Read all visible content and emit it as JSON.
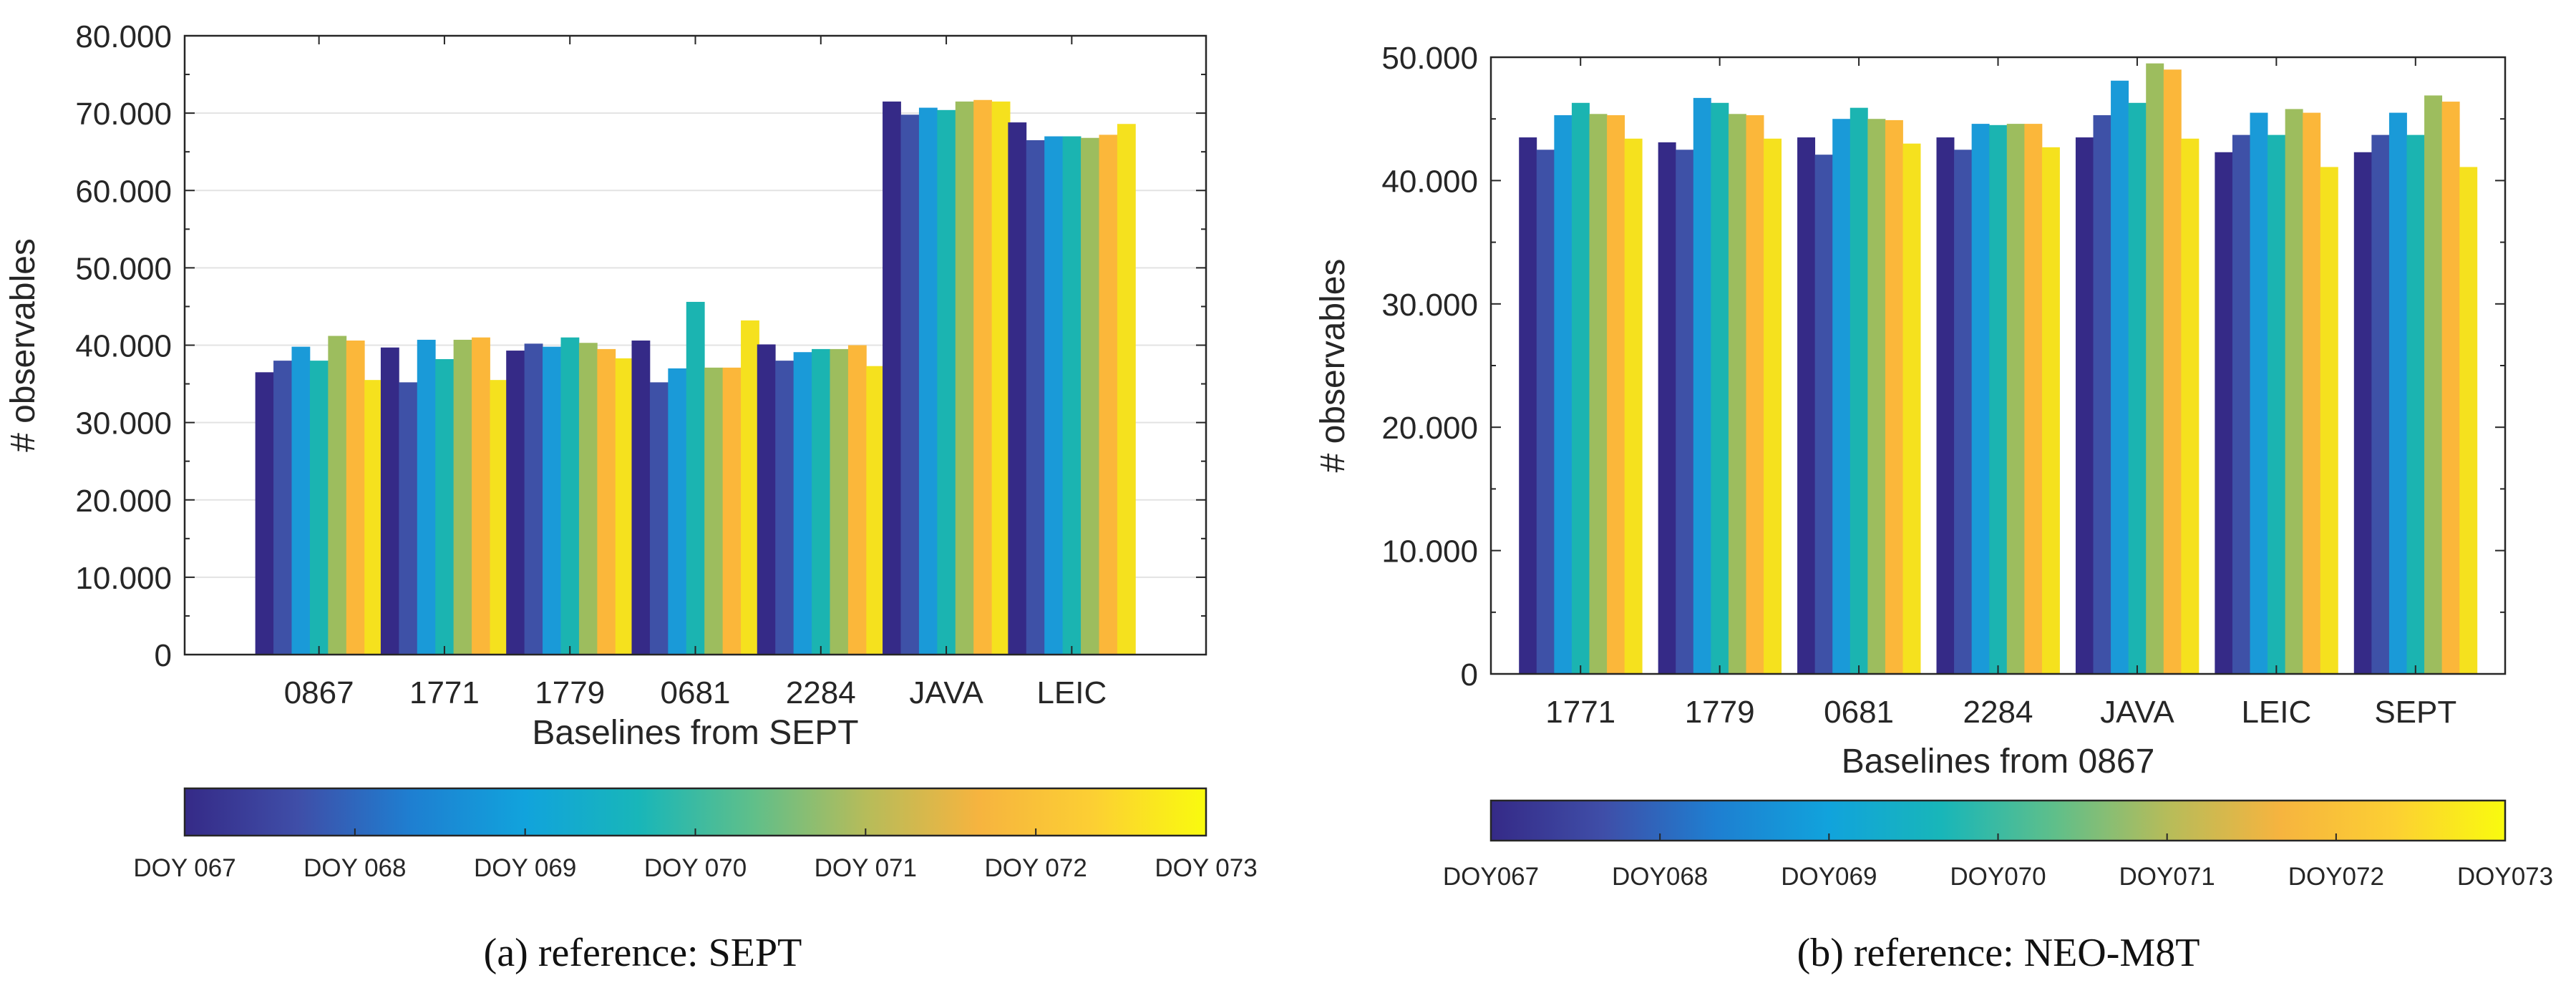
{
  "colors": {
    "DOY067": "#352a87",
    "DOY068": "#3e51a7",
    "DOY069": "#1a9ad8",
    "DOY070": "#1bb4b1",
    "DOY071": "#9dbd5e",
    "DOY072": "#fbb73a",
    "DOY073": "#f5e11e"
  },
  "colorbar_gradient": [
    "#352a87",
    "#3f4ea8",
    "#1e7fd1",
    "#11a3dc",
    "#18b6b9",
    "#5fbf8a",
    "#b6bc5a",
    "#f6b43f",
    "#fccf33",
    "#f9fb0e"
  ],
  "chart_data": [
    {
      "type": "bar",
      "xlabel": "Baselines from SEPT",
      "ylabel": "# observables",
      "ylim": [
        0,
        80000
      ],
      "yticks": [
        "0",
        "10.000",
        "20.000",
        "30.000",
        "40.000",
        "50.000",
        "60.000",
        "70.000",
        "80.000"
      ],
      "grid": true,
      "categories": [
        "0867",
        "1771",
        "1779",
        "0681",
        "2284",
        "JAVA",
        "LEIC"
      ],
      "series": [
        {
          "name": "DOY 067",
          "values": [
            36500,
            39700,
            39300,
            40600,
            40100,
            71500,
            68800
          ]
        },
        {
          "name": "DOY 068",
          "values": [
            38000,
            35200,
            40200,
            35200,
            38000,
            69800,
            66500
          ]
        },
        {
          "name": "DOY 069",
          "values": [
            39800,
            40700,
            39800,
            37000,
            39100,
            70700,
            67000
          ]
        },
        {
          "name": "DOY 070",
          "values": [
            38000,
            38200,
            41000,
            45600,
            39500,
            70400,
            67000
          ]
        },
        {
          "name": "DOY 071",
          "values": [
            41200,
            40700,
            40300,
            37100,
            39500,
            71500,
            66800
          ]
        },
        {
          "name": "DOY 072",
          "values": [
            40600,
            41000,
            39500,
            37100,
            40000,
            71700,
            67200
          ]
        },
        {
          "name": "DOY 073",
          "values": [
            35500,
            35500,
            38300,
            43200,
            37300,
            71500,
            68600
          ]
        }
      ],
      "colorbar_labels": [
        "DOY 067",
        "DOY 068",
        "DOY 069",
        "DOY 070",
        "DOY 071",
        "DOY 072",
        "DOY 073"
      ],
      "caption": "(a)  reference: SEPT"
    },
    {
      "type": "bar",
      "xlabel": "Baselines from 0867",
      "ylabel": "# observables",
      "ylim": [
        0,
        50000
      ],
      "yticks": [
        "0",
        "10.000",
        "20.000",
        "30.000",
        "40.000",
        "50.000"
      ],
      "grid": false,
      "categories": [
        "1771",
        "1779",
        "0681",
        "2284",
        "JAVA",
        "LEIC",
        "SEPT"
      ],
      "series": [
        {
          "name": "DOY067",
          "values": [
            43500,
            43100,
            43500,
            43500,
            43500,
            42300,
            42300
          ]
        },
        {
          "name": "DOY068",
          "values": [
            42500,
            42500,
            42100,
            42500,
            45300,
            43700,
            43700
          ]
        },
        {
          "name": "DOY069",
          "values": [
            45300,
            46700,
            45000,
            44600,
            48100,
            45500,
            45500
          ]
        },
        {
          "name": "DOY070",
          "values": [
            46300,
            46300,
            45900,
            44500,
            46300,
            43700,
            43700
          ]
        },
        {
          "name": "DOY071",
          "values": [
            45400,
            45400,
            45000,
            44600,
            49500,
            45800,
            46900
          ]
        },
        {
          "name": "DOY072",
          "values": [
            45300,
            45300,
            44900,
            44600,
            49000,
            45500,
            46400
          ]
        },
        {
          "name": "DOY073",
          "values": [
            43400,
            43400,
            43000,
            42700,
            43400,
            41100,
            41100
          ]
        }
      ],
      "colorbar_labels": [
        "DOY067",
        "DOY068",
        "DOY069",
        "DOY070",
        "DOY071",
        "DOY072",
        "DOY073"
      ],
      "caption": "(b)  reference: NEO-M8T"
    }
  ]
}
